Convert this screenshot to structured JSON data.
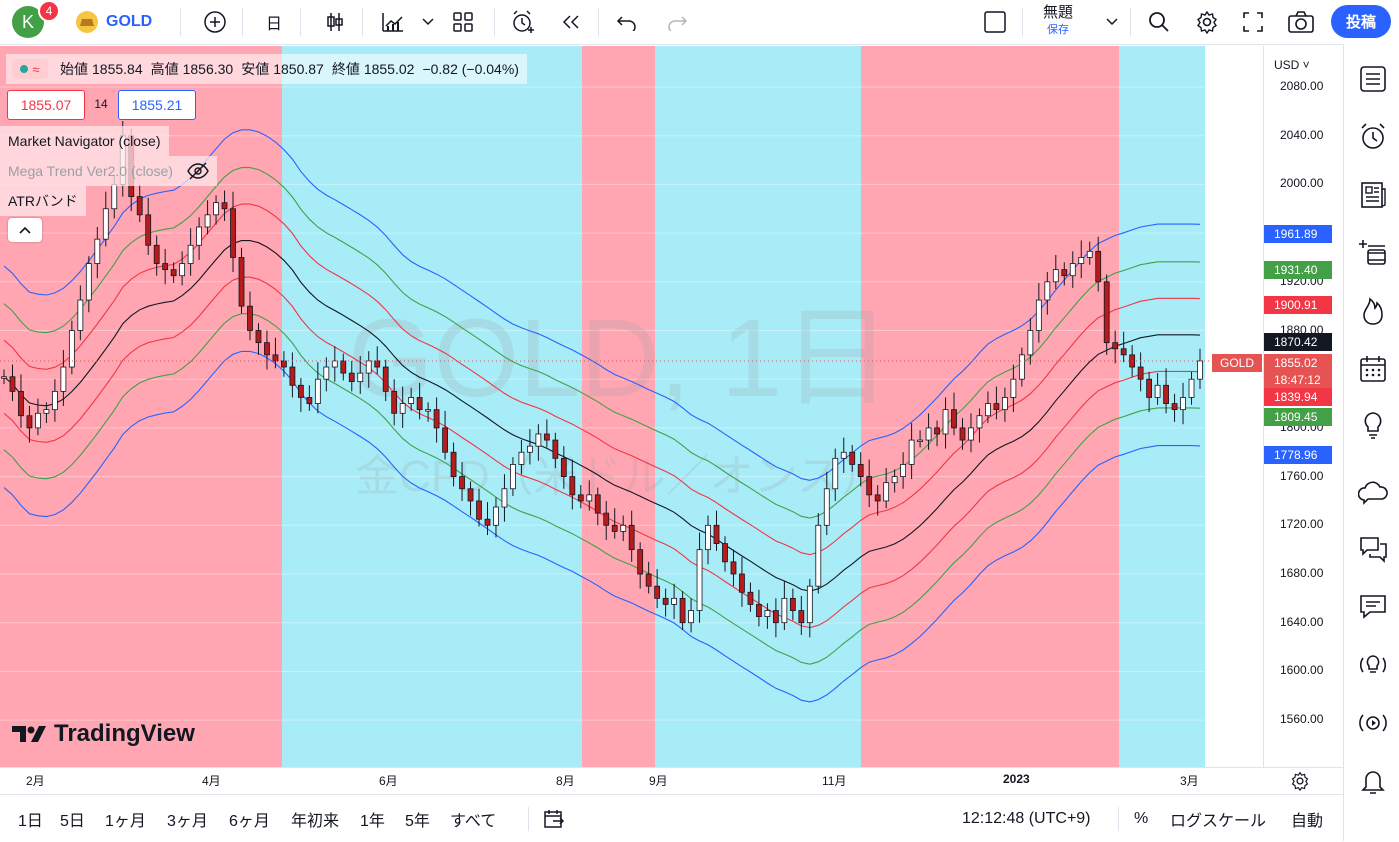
{
  "header": {
    "avatar_letter": "K",
    "notification_count": "4",
    "symbol": "GOLD",
    "interval": "日",
    "layout_name": "無題",
    "save_label": "保存",
    "post_label": "投稿"
  },
  "legend": {
    "open_label": "始値",
    "open": "1855.84",
    "high_label": "高値",
    "high": "1856.30",
    "low_label": "安値",
    "low": "1850.87",
    "close_label": "終値",
    "close": "1855.02",
    "change": "−0.82 (−0.04%)",
    "bid": "1855.07",
    "spread": "14",
    "ask": "1855.21",
    "indicators": [
      "Market Navigator (close)",
      "Mega Trend Ver2.0 (close)",
      "ATRバンド"
    ]
  },
  "watermark": {
    "symbol_line": "GOLD, 1日",
    "desc_line": "金CFD（米ドル／オンス）",
    "brand": "TradingView"
  },
  "price_axis": {
    "currency": "USD",
    "ticks": [
      "2080.00",
      "2040.00",
      "2000.00",
      "1960.00",
      "1920.00",
      "1880.00",
      "1840.00",
      "1800.00",
      "1760.00",
      "1720.00",
      "1680.00",
      "1640.00",
      "1600.00",
      "1560.00"
    ],
    "tags": [
      {
        "value": "1961.89",
        "color": "#2962ff"
      },
      {
        "value": "1931.40",
        "color": "#43a047"
      },
      {
        "value": "1900.91",
        "color": "#f23645"
      },
      {
        "value": "1870.42",
        "color": "#131722"
      },
      {
        "value": "1855.02",
        "color": "#e55353"
      },
      {
        "value": "18:47:12",
        "color": "#e55353"
      },
      {
        "value": "1839.94",
        "color": "#f23645"
      },
      {
        "value": "1809.45",
        "color": "#43a047"
      },
      {
        "value": "1778.96",
        "color": "#2962ff"
      }
    ],
    "symbol_tag": "GOLD"
  },
  "time_axis": [
    "2月",
    "4月",
    "6月",
    "8月",
    "9月",
    "11月",
    "2023",
    "3月"
  ],
  "bottom": {
    "ranges": [
      "1日",
      "5日",
      "1ヶ月",
      "3ヶ月",
      "6ヶ月",
      "年初来",
      "1年",
      "5年",
      "すべて"
    ],
    "clock": "12:12:48 (UTC+9)",
    "percent": "%",
    "log": "ログスケール",
    "auto": "自動"
  },
  "chart_data": {
    "type": "candlestick",
    "close_series": [
      1842,
      1830,
      1810,
      1800,
      1812,
      1815,
      1830,
      1850,
      1880,
      1905,
      1935,
      1955,
      1980,
      2000,
      2040,
      1990,
      1975,
      1950,
      1935,
      1930,
      1925,
      1935,
      1950,
      1965,
      1975,
      1985,
      1980,
      1940,
      1900,
      1880,
      1870,
      1860,
      1855,
      1850,
      1835,
      1825,
      1820,
      1840,
      1850,
      1855,
      1845,
      1838,
      1845,
      1855,
      1850,
      1830,
      1812,
      1820,
      1825,
      1815,
      1815,
      1800,
      1780,
      1760,
      1750,
      1740,
      1725,
      1720,
      1735,
      1750,
      1770,
      1780,
      1785,
      1795,
      1790,
      1775,
      1760,
      1745,
      1740,
      1745,
      1730,
      1720,
      1715,
      1720,
      1700,
      1680,
      1670,
      1660,
      1655,
      1660,
      1640,
      1650,
      1700,
      1720,
      1705,
      1690,
      1680,
      1665,
      1655,
      1645,
      1650,
      1640,
      1660,
      1650,
      1640,
      1670,
      1720,
      1750,
      1775,
      1780,
      1770,
      1760,
      1745,
      1740,
      1755,
      1760,
      1770,
      1790,
      1790,
      1800,
      1795,
      1815,
      1800,
      1790,
      1800,
      1810,
      1820,
      1815,
      1825,
      1840,
      1860,
      1880,
      1905,
      1920,
      1930,
      1925,
      1935,
      1940,
      1945,
      1920,
      1870,
      1865,
      1860,
      1850,
      1840,
      1825,
      1835,
      1820,
      1815,
      1825,
      1840,
      1855
    ]
  }
}
